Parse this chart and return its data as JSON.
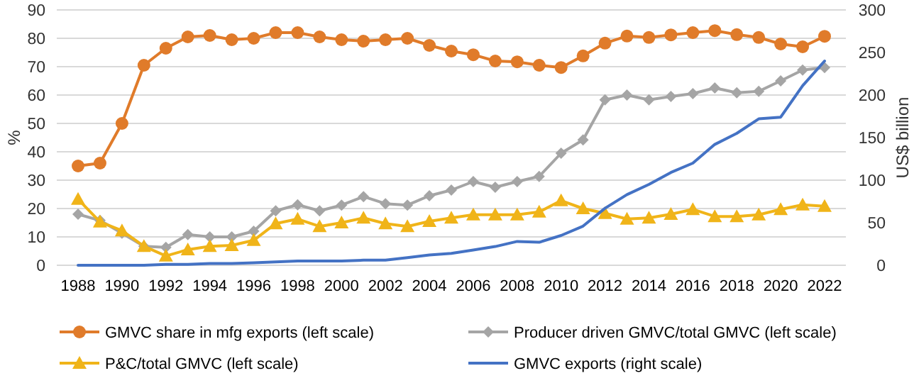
{
  "chart_data": {
    "type": "line",
    "ylabel": "%",
    "y2label": "US$ billion",
    "categories": [
      "1988",
      null,
      "1990",
      null,
      "1992",
      null,
      "1994",
      null,
      "1996",
      null,
      "1998",
      null,
      "2000",
      null,
      "2002",
      null,
      "2004",
      null,
      "2006",
      null,
      "2008",
      null,
      "2010",
      null,
      "2012",
      null,
      "2014",
      null,
      "2016",
      null,
      "2018",
      null,
      "2020",
      null,
      "2022"
    ],
    "ylim": [
      0,
      90
    ],
    "yticks": [
      0,
      10,
      20,
      30,
      40,
      50,
      60,
      70,
      80,
      90
    ],
    "y2lim": [
      0,
      300
    ],
    "y2ticks": [
      0,
      50,
      100,
      150,
      200,
      250,
      300
    ],
    "grid": "y",
    "legend": "bottom",
    "series": [
      {
        "name": "GMVC share in mfg exports (left scale)",
        "color": "#e07b2a",
        "marker": "circle",
        "values": [
          35,
          36,
          50,
          70.5,
          76.5,
          80.5,
          81,
          79.5,
          80,
          82,
          82,
          80.5,
          79.5,
          79,
          79.5,
          80,
          77.5,
          75.5,
          74.2,
          72,
          71.7,
          70.5,
          69.7,
          73.8,
          78.3,
          80.8,
          80.3,
          81.2,
          82,
          82.7,
          81.3,
          80.3,
          78,
          77,
          80.7
        ]
      },
      {
        "name": "Producer driven GMVC/total GMVC (left scale)",
        "color": "#a5a5a5",
        "marker": "diamond",
        "values": [
          18,
          15.8,
          11.3,
          6.7,
          6.3,
          10.8,
          10,
          10,
          12,
          19.2,
          21.3,
          19.2,
          21.2,
          24.2,
          21.7,
          21.2,
          24.5,
          26.5,
          29.5,
          27.5,
          29.5,
          31.3,
          39.5,
          44.2,
          58.3,
          60,
          58.3,
          59.5,
          60.5,
          62.5,
          60.8,
          61.3,
          65,
          68.8,
          69.7
        ]
      },
      {
        "name": "P&C/total GMVC (left scale)",
        "color": "#f0b419",
        "marker": "triangle",
        "values": [
          23.3,
          15.3,
          12.2,
          6.7,
          3.3,
          5.5,
          6.7,
          7,
          8.8,
          14.7,
          16.3,
          13.7,
          15,
          16.7,
          14.7,
          13.7,
          15.5,
          16.7,
          17.8,
          17.8,
          17.8,
          18.8,
          22.8,
          20,
          18.3,
          16.3,
          16.7,
          18,
          19.7,
          17.2,
          17.2,
          17.8,
          19.7,
          21.3,
          20.8
        ]
      },
      {
        "name": "GMVC exports (right scale)",
        "color": "#4472c4",
        "marker": "none",
        "axis": "y2",
        "values": [
          0,
          0,
          0,
          0,
          1,
          1,
          2,
          2,
          3,
          4,
          5,
          5,
          5,
          6,
          6,
          9,
          12,
          14,
          18,
          22,
          28,
          27,
          35,
          46,
          67,
          83,
          95,
          109,
          120,
          142,
          155,
          172,
          174,
          211,
          240
        ]
      }
    ]
  }
}
